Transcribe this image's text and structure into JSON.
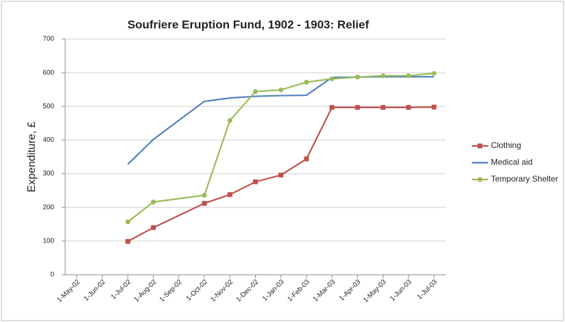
{
  "chart_data": {
    "type": "line",
    "title": "Soufriere Eruption Fund, 1902 - 1903: Relief",
    "y_label": "Expenditure, £",
    "x": [
      "1-Jul-02",
      "1-Aug-02",
      "1-Oct-02",
      "1-Nov-02",
      "1-Dec-02",
      "1-Jan-03",
      "1-Feb-03",
      "1-Mar-03",
      "1-Apr-03",
      "1-May-03",
      "1-Jun-03",
      "1-Jul-03"
    ],
    "xlim": [
      "1-May-02",
      "1-Jul-03"
    ],
    "xticks": [
      "1-May-02",
      "1-Jun-02",
      "1-Jul-02",
      "1-Aug-02",
      "1-Sep-02",
      "1-Oct-02",
      "1-Nov-02",
      "1-Dec-02",
      "1-Jan-03",
      "1-Feb-03",
      "1-Mar-03",
      "1-Apr-03",
      "1-May-03",
      "1-Jun-03",
      "1-Jul-03"
    ],
    "ylim": [
      0,
      700
    ],
    "yticks": [
      0,
      100,
      200,
      300,
      400,
      500,
      600,
      700
    ],
    "grid": true,
    "legend": "right",
    "series": [
      {
        "name": "Clothing",
        "color": "#c0504d",
        "marker": "square",
        "values": [
          99,
          140,
          212,
          238,
          276,
          296,
          344,
          497,
          497,
          497,
          497,
          498
        ]
      },
      {
        "name": "Medical aid",
        "color": "#4f81bd",
        "values": [
          328,
          402,
          515,
          525,
          530,
          532,
          533,
          586,
          587,
          588,
          588,
          588
        ]
      },
      {
        "name": "Temporary Shelter",
        "color": "#9bbb59",
        "marker": "circle",
        "values": [
          157,
          216,
          236,
          458,
          544,
          549,
          572,
          582,
          587,
          591,
          591,
          598
        ]
      }
    ]
  }
}
